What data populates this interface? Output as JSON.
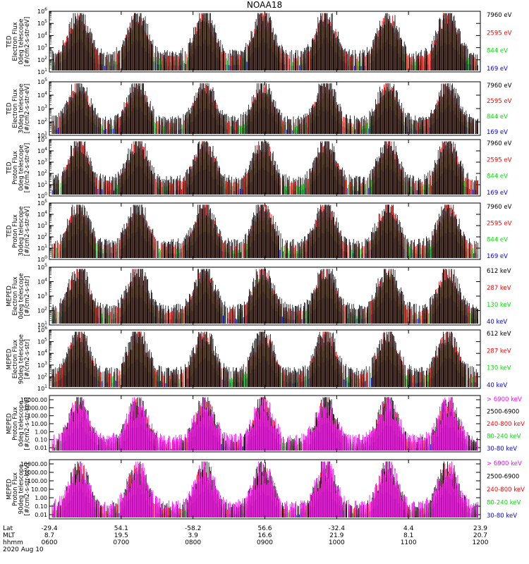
{
  "title": "NOAA18",
  "colors": {
    "black": "#000000",
    "blue": "#0000ff",
    "red": "#ff0000",
    "green": "#00e000",
    "magenta": "#ff00ff"
  },
  "chart_data": {
    "type": "line",
    "title": "NOAA18",
    "x_range_hhmm": [
      "0600",
      "1200"
    ],
    "footer": {
      "labels": [
        "Lat",
        "MLT",
        "hhmm",
        "2020 Aug 10"
      ],
      "lat": [
        "-29.4",
        "54.1",
        "-58.2",
        "56.6",
        "-32.4",
        "4.4",
        "23.9"
      ],
      "mlt": [
        "8.7",
        "19.5",
        "3.9",
        "16.6",
        "21.9",
        "8.1",
        "20.7"
      ],
      "hhmm": [
        "0600",
        "0700",
        "0800",
        "0900",
        "1000",
        "1100",
        "1200"
      ]
    },
    "panels": [
      {
        "id": "ted-e-0",
        "ylabel": [
          "TED",
          "Electron Flux",
          "0deg telescope",
          "[#/cm2-s-str-eV]"
        ],
        "scale": "log",
        "exps": [
          1,
          2,
          3,
          4,
          5,
          6
        ],
        "legend": [
          {
            "text": "7960 eV",
            "color": "black"
          },
          {
            "text": "2595 eV",
            "color": "red"
          },
          {
            "text": "844 eV",
            "color": "green"
          },
          {
            "text": "169 eV",
            "color": "blue"
          }
        ]
      },
      {
        "id": "ted-e-30",
        "ylabel": [
          "TED",
          "Electron Flux",
          "30deg telescope",
          "[#/cm2-s-str-eV]"
        ],
        "scale": "log",
        "exps": [
          1,
          2,
          3,
          4,
          5
        ],
        "legend": [
          {
            "text": "7960 eV",
            "color": "black"
          },
          {
            "text": "2595 eV",
            "color": "red"
          },
          {
            "text": "844 eV",
            "color": "green"
          },
          {
            "text": "169 eV",
            "color": "blue"
          }
        ]
      },
      {
        "id": "ted-p-0",
        "ylabel": [
          "TED",
          "Proton Flux",
          "0deg telescope",
          "[#/cm2-s-str-eV]"
        ],
        "scale": "log",
        "exps": [
          0,
          1,
          2,
          3,
          4,
          5
        ],
        "legend": [
          {
            "text": "7960 eV",
            "color": "black"
          },
          {
            "text": "2595 eV",
            "color": "red"
          },
          {
            "text": "844 eV",
            "color": "green"
          },
          {
            "text": "169 eV",
            "color": "blue"
          }
        ]
      },
      {
        "id": "ted-p-30",
        "ylabel": [
          "TED",
          "Proton Flux",
          "30deg telescope",
          "[#/cm2-s-str-eV]"
        ],
        "scale": "log",
        "exps": [
          0,
          1,
          2,
          3,
          4,
          5
        ],
        "legend": [
          {
            "text": "7960 eV",
            "color": "black"
          },
          {
            "text": "2595 eV",
            "color": "red"
          },
          {
            "text": "844 eV",
            "color": "green"
          },
          {
            "text": "169 eV",
            "color": "blue"
          }
        ]
      },
      {
        "id": "meped-e-0",
        "ylabel": [
          "MEPED",
          "Electron Flux",
          "0deg telescope",
          "[#/cm2-s-str]"
        ],
        "scale": "log",
        "exps": [
          1,
          2,
          3,
          4,
          5
        ],
        "legend": [
          {
            "text": "612 keV",
            "color": "black"
          },
          {
            "text": "287 keV",
            "color": "red"
          },
          {
            "text": "130 keV",
            "color": "green"
          },
          {
            "text": "40 keV",
            "color": "blue"
          }
        ]
      },
      {
        "id": "meped-e-90",
        "ylabel": [
          "MEPED",
          "Electron Flux",
          "90deg telescope",
          "[#/cm2-s-str]"
        ],
        "scale": "log",
        "exps": [
          1,
          2,
          3,
          4,
          5,
          6
        ],
        "legend": [
          {
            "text": "612 keV",
            "color": "black"
          },
          {
            "text": "287 keV",
            "color": "red"
          },
          {
            "text": "130 keV",
            "color": "green"
          },
          {
            "text": "40 keV",
            "color": "blue"
          }
        ]
      },
      {
        "id": "meped-p-0",
        "ylabel": [
          "MEPED",
          "Proton Flux",
          "0deg telescope",
          "[#/cm2-s-str-keV]"
        ],
        "scale": "lin",
        "ticks": [
          "0.01",
          "0.10",
          "1.00",
          "10.00",
          "100.00",
          "1000.00",
          "10000.00"
        ],
        "legend": [
          {
            "text": "> 6900 keV",
            "color": "magenta"
          },
          {
            "text": "2500-6900",
            "color": "black"
          },
          {
            "text": "240-800 keV",
            "color": "red"
          },
          {
            "text": "80-240 keV",
            "color": "green"
          },
          {
            "text": "30-80 keV",
            "color": "blue"
          }
        ]
      },
      {
        "id": "meped-p-90",
        "ylabel": [
          "MEPED",
          "Proton Flux",
          "90deg telescope",
          "[#/cm2-s-str-keV]"
        ],
        "scale": "lin",
        "ticks": [
          "0.01",
          "0.10",
          "1.00",
          "10.00",
          "100.00",
          "1000.00",
          "10000.00"
        ],
        "legend": [
          {
            "text": "> 6900 keV",
            "color": "magenta"
          },
          {
            "text": "2500-6900",
            "color": "black"
          },
          {
            "text": "240-800 keV",
            "color": "red"
          },
          {
            "text": "80-240 keV",
            "color": "green"
          },
          {
            "text": "30-80 keV",
            "color": "blue"
          }
        ]
      }
    ]
  }
}
